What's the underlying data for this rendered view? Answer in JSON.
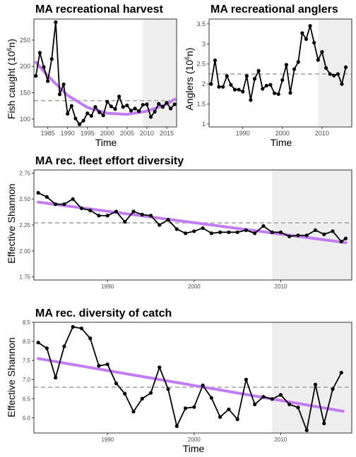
{
  "chart_data": [
    {
      "id": "harvest",
      "type": "line",
      "title": "MA recreational harvest",
      "xlabel": "Time",
      "ylabel_main": "Fish caught (10",
      "ylabel_sup": "6",
      "ylabel_end": "n)",
      "xlim": [
        1981.5,
        2017.5
      ],
      "ylim": [
        85,
        290
      ],
      "xticks": [
        1985,
        1990,
        1995,
        2000,
        2005,
        2010,
        2015
      ],
      "yticks": [
        100,
        150,
        200,
        250
      ],
      "shade_from": 2009,
      "mean_line": 135,
      "x": [
        1982,
        1983,
        1984,
        1985,
        1986,
        1987,
        1988,
        1989,
        1990,
        1991,
        1992,
        1993,
        1994,
        1995,
        1996,
        1997,
        1998,
        1999,
        2000,
        2001,
        2002,
        2003,
        2004,
        2005,
        2006,
        2007,
        2008,
        2009,
        2010,
        2011,
        2012,
        2013,
        2014,
        2015,
        2016,
        2017
      ],
      "values": [
        182,
        226,
        199,
        172,
        214,
        284,
        147,
        166,
        110,
        125,
        101,
        90,
        97,
        111,
        106,
        123,
        113,
        107,
        133,
        124,
        119,
        143,
        123,
        126,
        116,
        120,
        115,
        127,
        128,
        104,
        114,
        129,
        123,
        131,
        120,
        128
      ],
      "trend": {
        "x": [
          1982,
          1985,
          1990,
          1995,
          2000,
          2005,
          2010,
          2015,
          2017
        ],
        "y": [
          208,
          182,
          145,
          122,
          111,
          109,
          115,
          128,
          138
        ]
      }
    },
    {
      "id": "anglers",
      "type": "line",
      "title": "MA recreational anglers",
      "xlabel": "Time",
      "ylabel_main": "Anglers (10",
      "ylabel_sup": "6",
      "ylabel_end": "n)",
      "xlim": [
        1981.5,
        2017.5
      ],
      "ylim": [
        0.93,
        3.62
      ],
      "xticks": [
        1990,
        2000,
        2010
      ],
      "yticks": [
        1.0,
        1.5,
        2.0,
        2.5,
        3.0,
        3.5
      ],
      "ytick_labels": [
        "1",
        "1.5",
        "2",
        "2.5",
        "3",
        "3.5"
      ],
      "shade_from": 2009,
      "mean_line": 2.25,
      "x": [
        1982,
        1983,
        1984,
        1985,
        1986,
        1987,
        1988,
        1989,
        1990,
        1991,
        1992,
        1993,
        1994,
        1995,
        1996,
        1997,
        1998,
        1999,
        2000,
        2001,
        2002,
        2003,
        2004,
        2005,
        2006,
        2007,
        2008,
        2009,
        2010,
        2011,
        2012,
        2013,
        2014,
        2015,
        2016
      ],
      "values": [
        2.0,
        2.59,
        1.93,
        1.93,
        2.2,
        1.98,
        1.86,
        1.86,
        1.81,
        2.2,
        1.6,
        2.13,
        2.33,
        1.88,
        1.96,
        1.98,
        1.77,
        1.75,
        2.1,
        2.48,
        1.78,
        2.37,
        2.55,
        3.27,
        3.12,
        3.45,
        3.03,
        2.6,
        2.8,
        2.4,
        2.25,
        2.21,
        2.25,
        2.0,
        2.42
      ]
    },
    {
      "id": "effort",
      "type": "line",
      "title": "MA rec. fleet effort diversity",
      "xlabel": "",
      "ylabel": "Effective Shannon",
      "xlim": [
        1981.5,
        2018.2
      ],
      "ylim": [
        1.72,
        2.78
      ],
      "xticks": [
        1990,
        2000,
        2010
      ],
      "yticks": [
        1.75,
        2.0,
        2.25,
        2.5,
        2.75
      ],
      "ytick_labels": [
        "1.75",
        "2.00",
        "2.25",
        "2.50",
        "2.75"
      ],
      "shade_from": 2009,
      "mean_line": 2.27,
      "x": [
        1982,
        1983,
        1984,
        1985,
        1986,
        1987,
        1988,
        1989,
        1990,
        1991,
        1992,
        1993,
        1994,
        1995,
        1996,
        1997,
        1998,
        1999,
        2000,
        2001,
        2002,
        2003,
        2004,
        2005,
        2006,
        2007,
        2008,
        2009,
        2010,
        2011,
        2012,
        2013,
        2014,
        2015,
        2016,
        2017
      ],
      "values": [
        2.56,
        2.52,
        2.45,
        2.45,
        2.5,
        2.41,
        2.39,
        2.34,
        2.34,
        2.38,
        2.28,
        2.38,
        2.35,
        2.34,
        2.25,
        2.3,
        2.21,
        2.17,
        2.19,
        2.22,
        2.17,
        2.18,
        2.18,
        2.18,
        2.2,
        2.17,
        2.24,
        2.18,
        2.18,
        2.14,
        2.15,
        2.15,
        2.2,
        2.16,
        2.19,
        2.09
      ],
      "extra_point": {
        "x": 2017.5,
        "y": 2.12
      },
      "trend": {
        "x": [
          1982,
          2017.5
        ],
        "y": [
          2.47,
          2.08
        ]
      }
    },
    {
      "id": "catch",
      "type": "line",
      "title": "MA rec. diversity of catch",
      "xlabel": "Time",
      "ylabel": "Effective Shannon",
      "xlim": [
        1981.5,
        2018.2
      ],
      "ylim": [
        5.6,
        8.5
      ],
      "xticks": [
        1990,
        2000,
        2010
      ],
      "yticks": [
        6.0,
        6.5,
        7.0,
        7.5,
        8.0,
        8.5
      ],
      "ytick_labels": [
        "6.0",
        "6.5",
        "7.0",
        "7.5",
        "8.0",
        "8.5"
      ],
      "shade_from": 2009,
      "mean_line": 6.8,
      "x": [
        1982,
        1983,
        1984,
        1985,
        1986,
        1987,
        1988,
        1989,
        1990,
        1991,
        1992,
        1993,
        1994,
        1995,
        1996,
        1997,
        1998,
        1999,
        2000,
        2001,
        2002,
        2003,
        2004,
        2005,
        2006,
        2007,
        2008,
        2009,
        2010,
        2011,
        2012,
        2013,
        2014,
        2015,
        2016,
        2017
      ],
      "values": [
        7.97,
        7.82,
        7.05,
        7.87,
        8.38,
        8.34,
        8.08,
        7.36,
        7.4,
        6.9,
        6.63,
        6.16,
        6.5,
        6.65,
        7.32,
        6.75,
        5.78,
        6.25,
        6.28,
        6.85,
        6.52,
        6.02,
        6.22,
        5.96,
        7.0,
        6.35,
        6.55,
        6.49,
        6.6,
        6.35,
        6.27,
        5.67,
        6.87,
        5.85,
        6.75,
        7.18
      ],
      "trend": {
        "x": [
          1982,
          2017.2
        ],
        "y": [
          7.55,
          6.17
        ]
      }
    }
  ],
  "colors": {
    "series": "#000000",
    "trend": "#c27cf2",
    "mean": "#a6a6a6",
    "shade": "#eeeeee",
    "axis": "#333333",
    "tick_text": "#4d4d4d"
  }
}
